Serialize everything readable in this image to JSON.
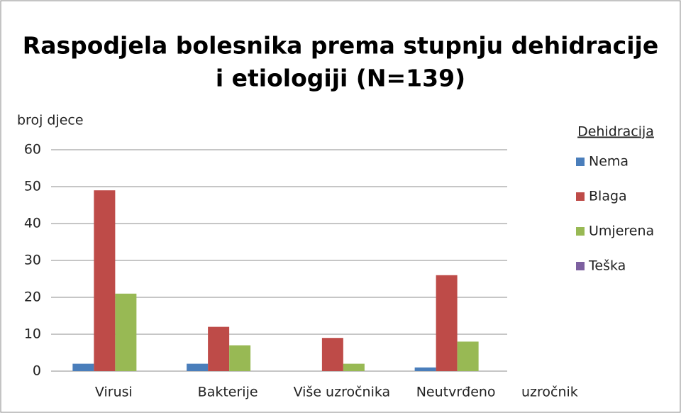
{
  "chart_data": {
    "type": "bar",
    "title": [
      "Raspodjela bolesnika prema stupnju dehidracije",
      "i etiologiji (N=139)"
    ],
    "y_label": "broj djece",
    "x_label": "uzročnik",
    "legend_title": "Dehidracija",
    "categories": [
      "Virusi",
      "Bakterije",
      "Više uzročnika",
      "Neutvrđeno"
    ],
    "series": [
      {
        "name": "Nema",
        "color": "#4a7ebb",
        "values": [
          2,
          2,
          0,
          1
        ]
      },
      {
        "name": "Blaga",
        "color": "#be4b48",
        "values": [
          49,
          12,
          9,
          26
        ]
      },
      {
        "name": "Umjerena",
        "color": "#98b954",
        "values": [
          21,
          7,
          2,
          8
        ]
      },
      {
        "name": "Teška",
        "color": "#7d60a0",
        "values": [
          0,
          0,
          0,
          0
        ]
      }
    ],
    "ylim": [
      0,
      60
    ],
    "yticks": [
      0,
      10,
      20,
      30,
      40,
      50,
      60
    ],
    "grid": true,
    "legend": "right"
  }
}
